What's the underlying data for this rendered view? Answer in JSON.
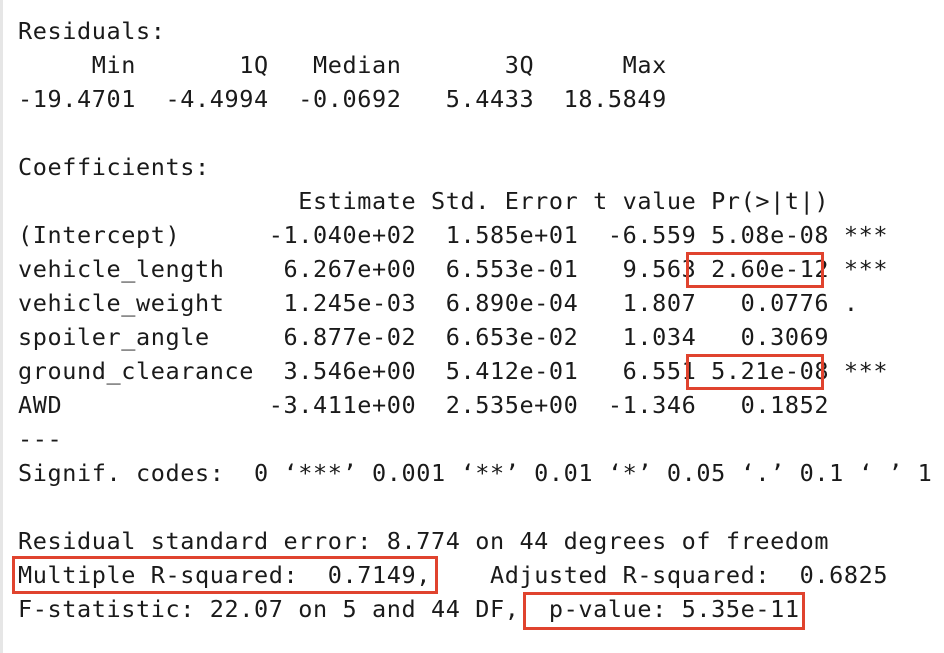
{
  "output_lines": [
    "Residuals:",
    "     Min       1Q   Median       3Q      Max ",
    "-19.4701  -4.4994  -0.0692   5.4433  18.5849 ",
    "",
    "Coefficients:",
    "                   Estimate Std. Error t value Pr(>|t|)    ",
    "(Intercept)      -1.040e+02  1.585e+01  -6.559 5.08e-08 ***",
    "vehicle_length    6.267e+00  6.553e-01   9.563 2.60e-12 ***",
    "vehicle_weight    1.245e-03  6.890e-04   1.807   0.0776 .  ",
    "spoiler_angle     6.877e-02  6.653e-02   1.034   0.3069    ",
    "ground_clearance  3.546e+00  5.412e-01   6.551 5.21e-08 ***",
    "AWD              -3.411e+00  2.535e+00  -1.346   0.1852    ",
    "---",
    "Signif. codes:  0 ‘***’ 0.001 ‘**’ 0.01 ‘*’ 0.05 ‘.’ 0.1 ‘ ’ 1",
    "",
    "Residual standard error: 8.774 on 44 degrees of freedom",
    "Multiple R-squared:  0.7149,\tAdjusted R-squared:  0.6825 ",
    "F-statistic: 22.07 on 5 and 44 DF,  p-value: 5.35e-11"
  ],
  "highlight_color": "#e0432e"
}
